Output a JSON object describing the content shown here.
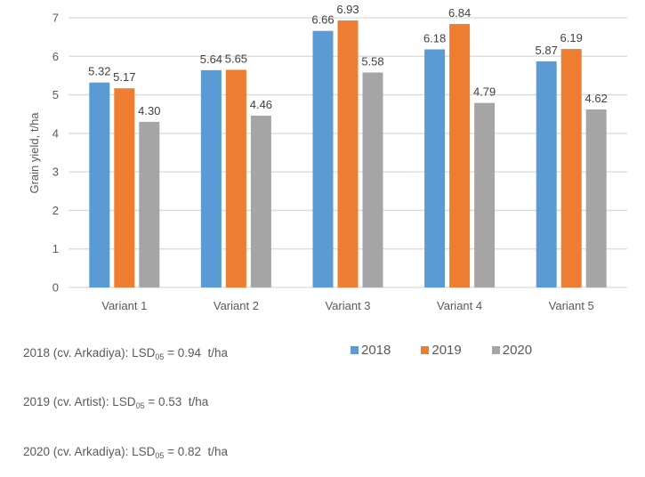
{
  "chart_data": {
    "type": "bar",
    "title": "",
    "xlabel": "",
    "ylabel": "Grain yield, t/ha",
    "ylim": [
      0,
      7
    ],
    "yticks": [
      0,
      1,
      2,
      3,
      4,
      5,
      6,
      7
    ],
    "grid": true,
    "legend_position": "bottom",
    "categories": [
      "Variant 1",
      "Variant 2",
      "Variant 3",
      "Variant 4",
      "Variant 5"
    ],
    "series": [
      {
        "name": "2018",
        "color": "#5B9BD5",
        "values": [
          5.32,
          5.64,
          6.66,
          6.18,
          5.87
        ],
        "labels": [
          "5.32",
          "5.64",
          "6.66",
          "6.18",
          "5.87"
        ]
      },
      {
        "name": "2019",
        "color": "#ED7D31",
        "values": [
          5.17,
          5.65,
          6.93,
          6.84,
          6.19
        ],
        "labels": [
          "5.17",
          "5.65",
          "6.93",
          "6.84",
          "6.19"
        ]
      },
      {
        "name": "2020",
        "color": "#A5A5A5",
        "values": [
          4.3,
          4.46,
          5.58,
          4.79,
          4.62
        ],
        "labels": [
          "4.30",
          "4.46",
          "5.58",
          "4.79",
          "4.62"
        ]
      }
    ],
    "annotations": [
      {
        "prefix": "2018 (cv. Arkadiya): LSD",
        "sub": "05",
        "suffix": " = 0.94  t/ha"
      },
      {
        "prefix": "2019 (cv. Artist): LSD",
        "sub": "05",
        "suffix": " = 0.53  t/ha"
      },
      {
        "prefix": "2020 (cv. Arkadiya): LSD",
        "sub": "05",
        "suffix": " = 0.82  t/ha"
      }
    ]
  }
}
